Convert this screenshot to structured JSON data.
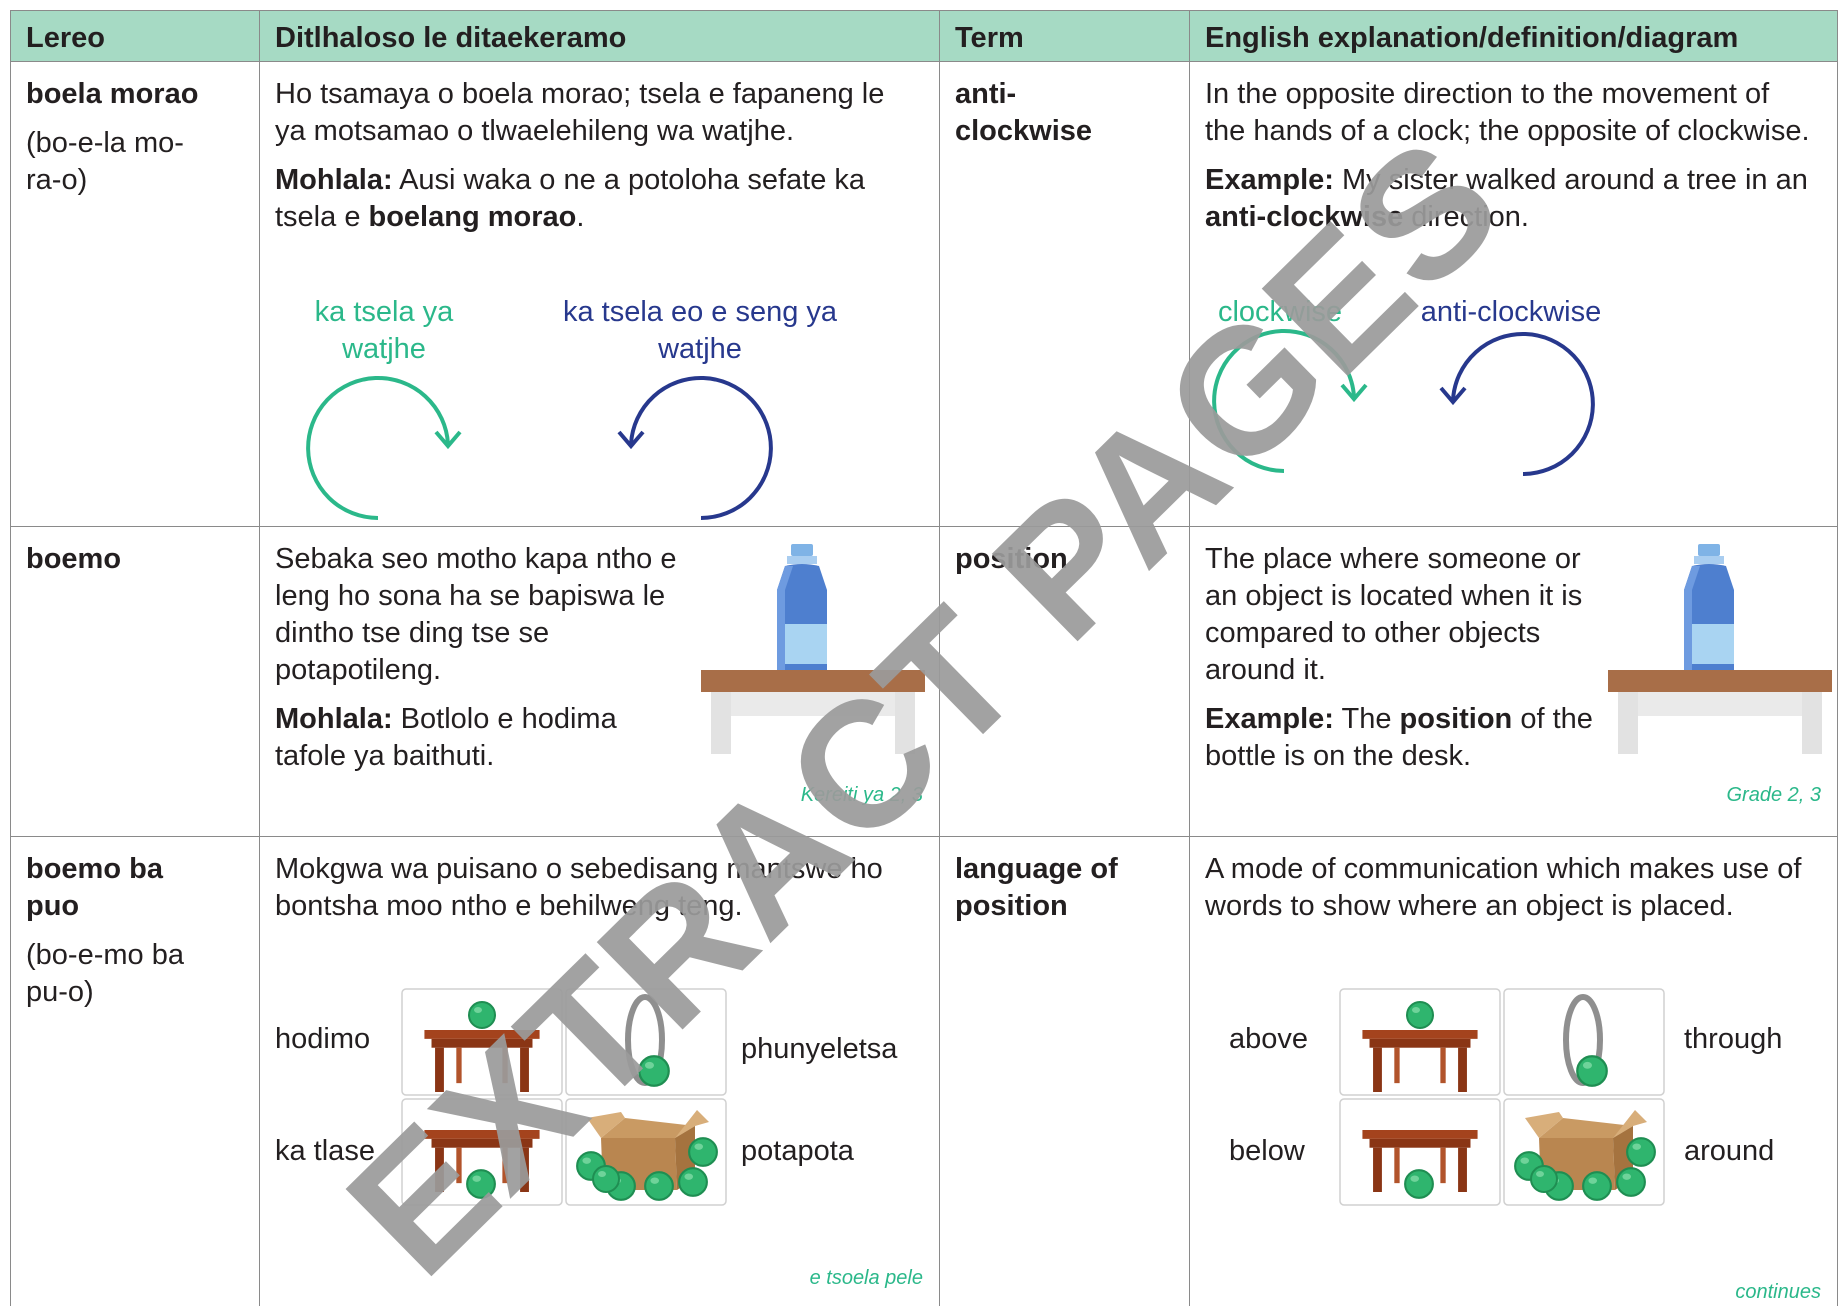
{
  "header": {
    "lereo": "Lereo",
    "ditlhaloso": "Ditlhaloso le ditaekeramo",
    "term": "Term",
    "english": "English explanation/definition/diagram"
  },
  "rows": [
    {
      "lereo": "boela morao",
      "pronunciation": "(bo-e-la mo-ra-o)",
      "ditlhaloso": "Ho tsamaya o boela morao; tsela e fapaneng le ya motsamao o tlwaelehileng wa watjhe.",
      "mohlala": [
        "Mohlala:",
        " Ausi waka o ne a potoloha sefate ka tsela e ",
        "boelang morao",
        "."
      ],
      "diagram": [
        "ka tsela ya watjhe",
        "ka tsela eo e seng ya watjhe"
      ],
      "term": "anti-clockwise",
      "definition": "In the opposite direction to the movement of the hands of a clock; the opposite of clockwise.",
      "example": [
        "Example:",
        " My sister walked around a tree in an ",
        "anti-clockwise",
        " direction."
      ],
      "diagram_en": [
        "clockwise",
        "anti-clockwise"
      ]
    },
    {
      "lereo": "boemo",
      "ditlhaloso": "Sebaka seo motho kapa ntho e leng ho sona ha se bapiswa le dintho tse ding tse se potapotileng.",
      "mohlala": [
        "Mohlala:",
        " Botlolo e hodima tafole ya baithuti."
      ],
      "grade": "Kereiti ya 2, 3",
      "term": "position",
      "definition": "The place where someone or an object is located when it is compared to other objects around it.",
      "example": [
        "Example:",
        " The ",
        "position",
        " of the bottle is on the desk."
      ],
      "grade_en": "Grade 2, 3"
    },
    {
      "lereo": "boemo ba puo",
      "pronunciation": "(bo-e-mo ba pu-o)",
      "ditlhaloso": "Mokgwa wa puisano o sebedisang mantswe ho bontsha moo ntho e behilweng teng.",
      "diagram": [
        "hodimo",
        "phunyeletsa",
        "ka tlase",
        "potapota"
      ],
      "continues": "e tsoela pele",
      "term": "language of position",
      "definition": "A mode of communication which makes use of words to show where an object is placed.",
      "diagram_en": [
        "above",
        "through",
        "below",
        "around"
      ],
      "continues_en": "continues"
    }
  ],
  "watermark": "EXTRACT PAGES"
}
